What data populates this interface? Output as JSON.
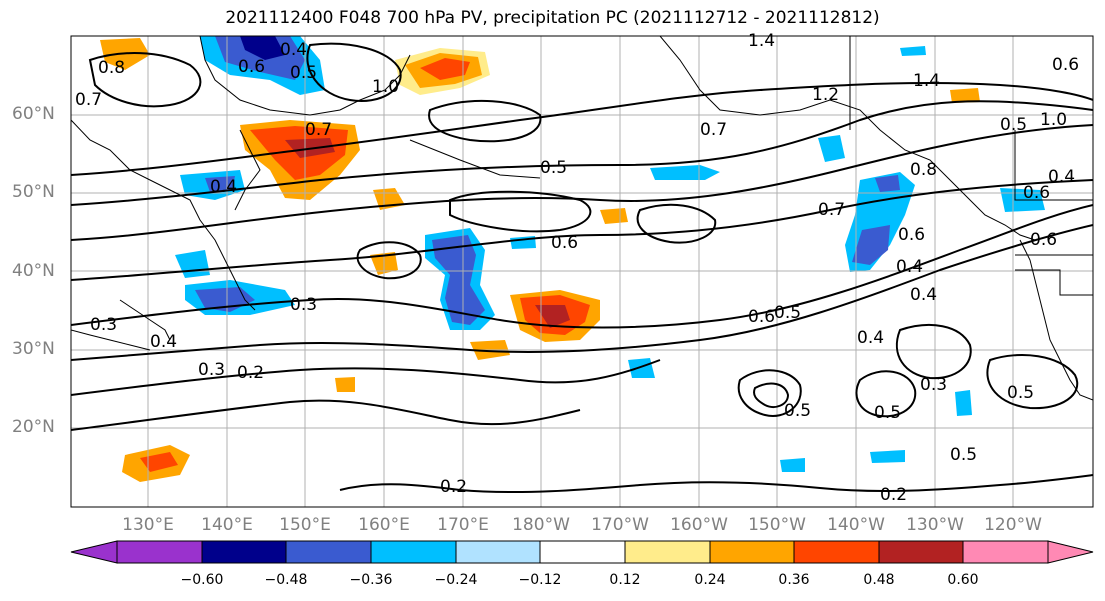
{
  "title": "2021112400 F048 700 hPa PV, precipitation PC (2021112712 - 2021112812)",
  "map": {
    "lat_labels": [
      "60°N",
      "50°N",
      "40°N",
      "30°N",
      "20°N"
    ],
    "lon_labels": [
      "130°E",
      "140°E",
      "150°E",
      "160°E",
      "170°E",
      "180°W",
      "170°W",
      "160°W",
      "150°W",
      "140°W",
      "130°W",
      "120°W"
    ],
    "contour_labels": [
      "1.4",
      "1.4",
      "0.4",
      "0.5",
      "0.6",
      "0.8",
      "0.7",
      "0.7",
      "1.0",
      "1.2",
      "1.0",
      "0.5",
      "0.4",
      "0.6",
      "0.5",
      "0.6",
      "0.6",
      "0.4",
      "0.3",
      "0.3",
      "0.4",
      "0.3",
      "0.2",
      "0.7",
      "0.8",
      "0.4",
      "0.6",
      "0.5",
      "0.6",
      "0.4",
      "0.3",
      "0.4",
      "0.5",
      "0.5",
      "0.5",
      "0.5",
      "0.2",
      "0.2",
      "0.6",
      "0.7"
    ]
  },
  "colorbar": {
    "ticks": [
      "−0.60",
      "−0.48",
      "−0.36",
      "−0.24",
      "−0.12",
      "0.12",
      "0.24",
      "0.36",
      "0.48",
      "0.60"
    ],
    "colors": [
      "#9a32cd",
      "#00008b",
      "#3a5bd0",
      "#00bfff",
      "#b0e2ff",
      "#ffffff",
      "#ffec8b",
      "#ffa500",
      "#ff4500",
      "#b22222",
      "#ff89b4"
    ]
  },
  "shading_colors": {
    "neg_strong": "#3a5bd0",
    "neg_mid": "#00bfff",
    "neg_weak": "#b0e2ff",
    "pos_weak": "#ffec8b",
    "pos_mid": "#ffa500",
    "pos_strong": "#ff4500",
    "pos_max": "#b22222",
    "neg_max": "#00008b"
  }
}
